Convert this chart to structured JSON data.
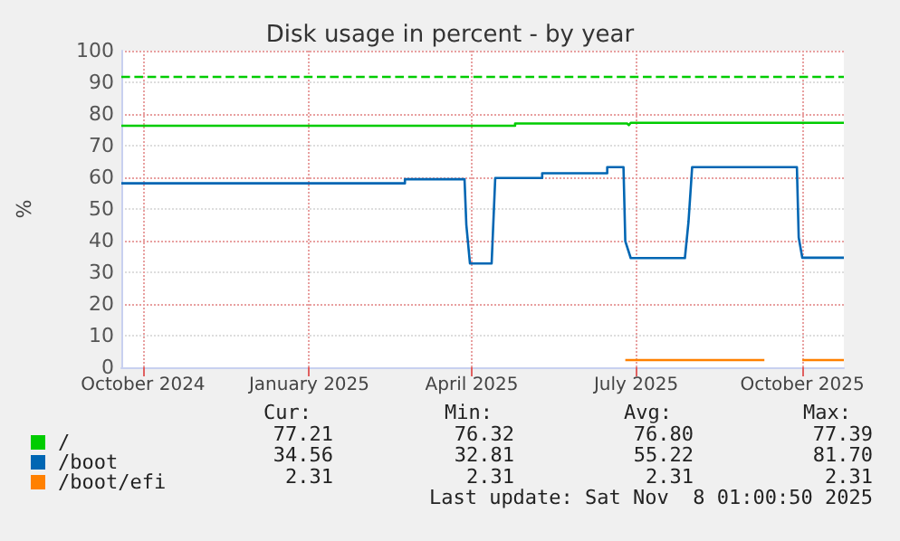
{
  "chart_data": {
    "type": "line",
    "title": "Disk usage in percent - by year",
    "ylabel": "%",
    "xlim": [
      "2024-10-04",
      "2025-11-08"
    ],
    "ylim": [
      0,
      100
    ],
    "yticks": [
      0,
      10,
      20,
      30,
      40,
      50,
      60,
      70,
      80,
      90,
      100
    ],
    "xticks": [
      {
        "value": "2024-10-16",
        "label": "October 2024"
      },
      {
        "value": "2025-01-16",
        "label": "January 2025"
      },
      {
        "value": "2025-04-16",
        "label": "April 2025"
      },
      {
        "value": "2025-07-16",
        "label": "July 2025"
      },
      {
        "value": "2025-10-16",
        "label": "October 2025"
      }
    ],
    "grid": true,
    "legend": "bottom left",
    "marker": "none",
    "line_style": "solid",
    "ref_lines": [
      {
        "axis": "y",
        "value": 92,
        "label": null,
        "color": "#00cc00",
        "line_style": "dashed"
      }
    ],
    "series": [
      {
        "name": "/",
        "color": "#00cc00",
        "x": [
          "2024-10-04",
          "2025-05-10",
          "2025-05-10",
          "2025-07-11",
          "2025-07-12",
          "2025-07-13",
          "2025-11-08"
        ],
        "values": [
          76.3,
          76.3,
          77.0,
          77.0,
          76.5,
          77.2,
          77.2
        ]
      },
      {
        "name": "/boot",
        "color": "#0066b3",
        "x": [
          "2024-10-04",
          "2025-03-10",
          "2025-03-10",
          "2025-04-12",
          "2025-04-13",
          "2025-04-15",
          "2025-04-27",
          "2025-04-29",
          "2025-05-25",
          "2025-05-25",
          "2025-06-30",
          "2025-06-30",
          "2025-07-09",
          "2025-07-10",
          "2025-07-13",
          "2025-08-12",
          "2025-08-14",
          "2025-08-16",
          "2025-10-13",
          "2025-10-14",
          "2025-10-16",
          "2025-11-08"
        ],
        "values": [
          58.1,
          58.1,
          59.4,
          59.4,
          45,
          32.8,
          32.8,
          59.8,
          59.8,
          61.3,
          61.3,
          63.2,
          63.2,
          39.8,
          34.5,
          34.5,
          46,
          63.2,
          63.2,
          41,
          34.6,
          34.6
        ]
      },
      {
        "name": "/boot/efi",
        "color": "#ff8000",
        "x": [
          "2025-07-10",
          "2025-09-25",
          "2025-10-05",
          "2025-10-16",
          "2025-11-08"
        ],
        "values": [
          2.3,
          2.3,
          null,
          2.3,
          2.3
        ]
      }
    ],
    "annotations": [
      "Cur:",
      "Min:",
      "Avg:",
      "Max:",
      "77.21",
      "76.32",
      "76.80",
      "77.39",
      "34.56",
      "32.81",
      "55.22",
      "81.70",
      "2.31",
      "2.31",
      "2.31",
      "2.31",
      "Last update: Sat Nov  8 01:00:50 2025"
    ]
  }
}
